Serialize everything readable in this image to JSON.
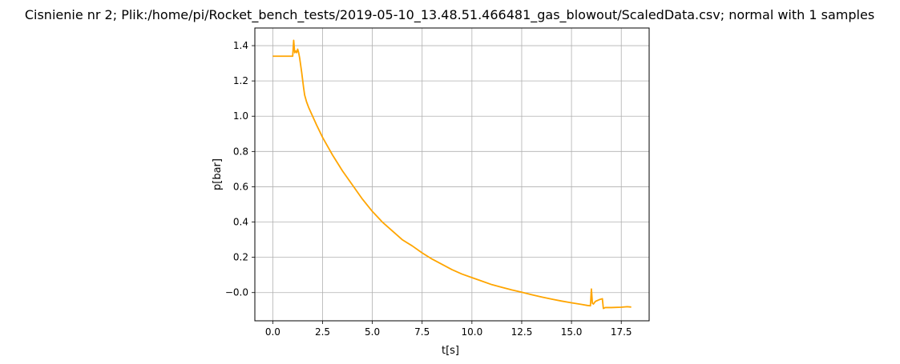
{
  "chart_data": {
    "type": "line",
    "title": "Cisnienie nr 2; Plik:/home/pi/Rocket_bench_tests/2019-05-10_13.48.51.466481_gas_blowout/ScaledData.csv; normal with 1 samples",
    "xlabel": "t[s]",
    "ylabel": "p[bar]",
    "xlim": [
      -0.9,
      18.9
    ],
    "ylim": [
      -0.16,
      1.5
    ],
    "x_ticks": [
      0.0,
      2.5,
      5.0,
      7.5,
      10.0,
      12.5,
      15.0,
      17.5
    ],
    "y_ticks": [
      -0.0,
      0.2,
      0.4,
      0.6,
      0.8,
      1.0,
      1.2,
      1.4
    ],
    "x_tick_labels": [
      "0.0",
      "2.5",
      "5.0",
      "7.5",
      "10.0",
      "12.5",
      "15.0",
      "17.5"
    ],
    "y_tick_labels": [
      "−0.0",
      "0.2",
      "0.4",
      "0.6",
      "0.8",
      "1.0",
      "1.2",
      "1.4"
    ],
    "grid": true,
    "color": "#FFA500",
    "series": [
      {
        "x": [
          0.0,
          0.4,
          0.8,
          1.0,
          1.05,
          1.1,
          1.15,
          1.2,
          1.25,
          1.3,
          1.35,
          1.45,
          1.55,
          1.6,
          1.7,
          1.8,
          2.0,
          2.2,
          2.5,
          2.8,
          3.0,
          3.5,
          4.0,
          4.5,
          5.0,
          5.5,
          6.0,
          6.5,
          7.0,
          7.5,
          8.0,
          8.5,
          9.0,
          9.5,
          10.0,
          10.5,
          11.0,
          11.5,
          12.0,
          12.5,
          13.0,
          13.5,
          14.0,
          14.5,
          15.0,
          15.5,
          15.8,
          15.95,
          16.0,
          16.05,
          16.1,
          16.2,
          16.4,
          16.55,
          16.6,
          16.7,
          17.0,
          17.5,
          17.8,
          18.0
        ],
        "y": [
          1.34,
          1.34,
          1.34,
          1.34,
          1.43,
          1.36,
          1.37,
          1.36,
          1.38,
          1.36,
          1.33,
          1.25,
          1.16,
          1.12,
          1.08,
          1.05,
          1.0,
          0.95,
          0.88,
          0.82,
          0.78,
          0.69,
          0.61,
          0.53,
          0.46,
          0.4,
          0.35,
          0.3,
          0.265,
          0.225,
          0.19,
          0.16,
          0.13,
          0.105,
          0.085,
          0.065,
          0.045,
          0.03,
          0.015,
          0.002,
          -0.012,
          -0.025,
          -0.037,
          -0.048,
          -0.058,
          -0.067,
          -0.073,
          -0.075,
          0.02,
          -0.06,
          -0.065,
          -0.05,
          -0.04,
          -0.035,
          -0.09,
          -0.085,
          -0.085,
          -0.083,
          -0.08,
          -0.082
        ]
      }
    ]
  }
}
